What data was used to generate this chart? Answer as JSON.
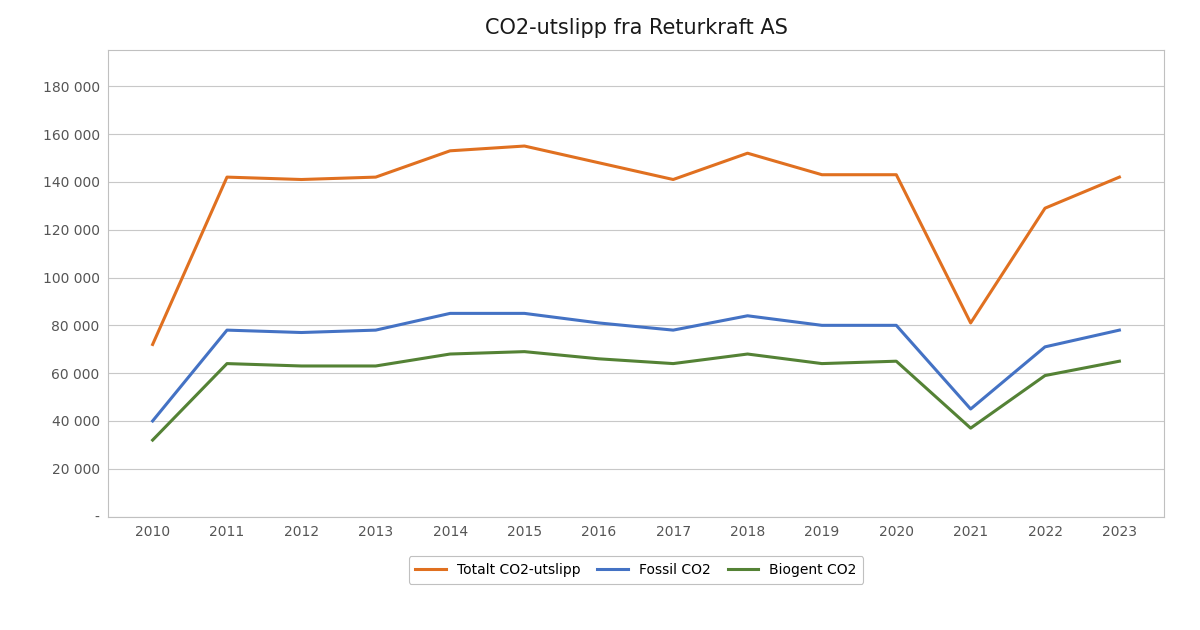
{
  "title": "CO2-utslipp fra Returkraft AS",
  "years": [
    2010,
    2011,
    2012,
    2013,
    2014,
    2015,
    2016,
    2017,
    2018,
    2019,
    2020,
    2021,
    2022,
    2023
  ],
  "totalt": [
    72000,
    142000,
    141000,
    142000,
    153000,
    155000,
    148000,
    141000,
    152000,
    143000,
    143000,
    81000,
    129000,
    142000
  ],
  "fossil": [
    40000,
    78000,
    77000,
    78000,
    85000,
    85000,
    81000,
    78000,
    84000,
    80000,
    80000,
    45000,
    71000,
    78000
  ],
  "biogent": [
    32000,
    64000,
    63000,
    63000,
    68000,
    69000,
    66000,
    64000,
    68000,
    64000,
    65000,
    37000,
    59000,
    65000
  ],
  "totalt_color": "#E07020",
  "fossil_color": "#4472C4",
  "biogent_color": "#548235",
  "legend_totalt": "Totalt CO2-utslipp",
  "legend_fossil": "Fossil CO2",
  "legend_biogent": "Biogent CO2",
  "ylim": [
    0,
    195000
  ],
  "yticks": [
    0,
    20000,
    40000,
    60000,
    80000,
    100000,
    120000,
    140000,
    160000,
    180000
  ],
  "ytick_labels": [
    "-",
    "20 000",
    "40 000",
    "60 000",
    "80 000",
    "100 000",
    "120 000",
    "140 000",
    "160 000",
    "180 000"
  ],
  "background_color": "#ffffff",
  "grid_color": "#c8c8c8",
  "line_width": 2.2,
  "title_fontsize": 15,
  "tick_fontsize": 10,
  "legend_fontsize": 10,
  "spine_color": "#c0c0c0"
}
